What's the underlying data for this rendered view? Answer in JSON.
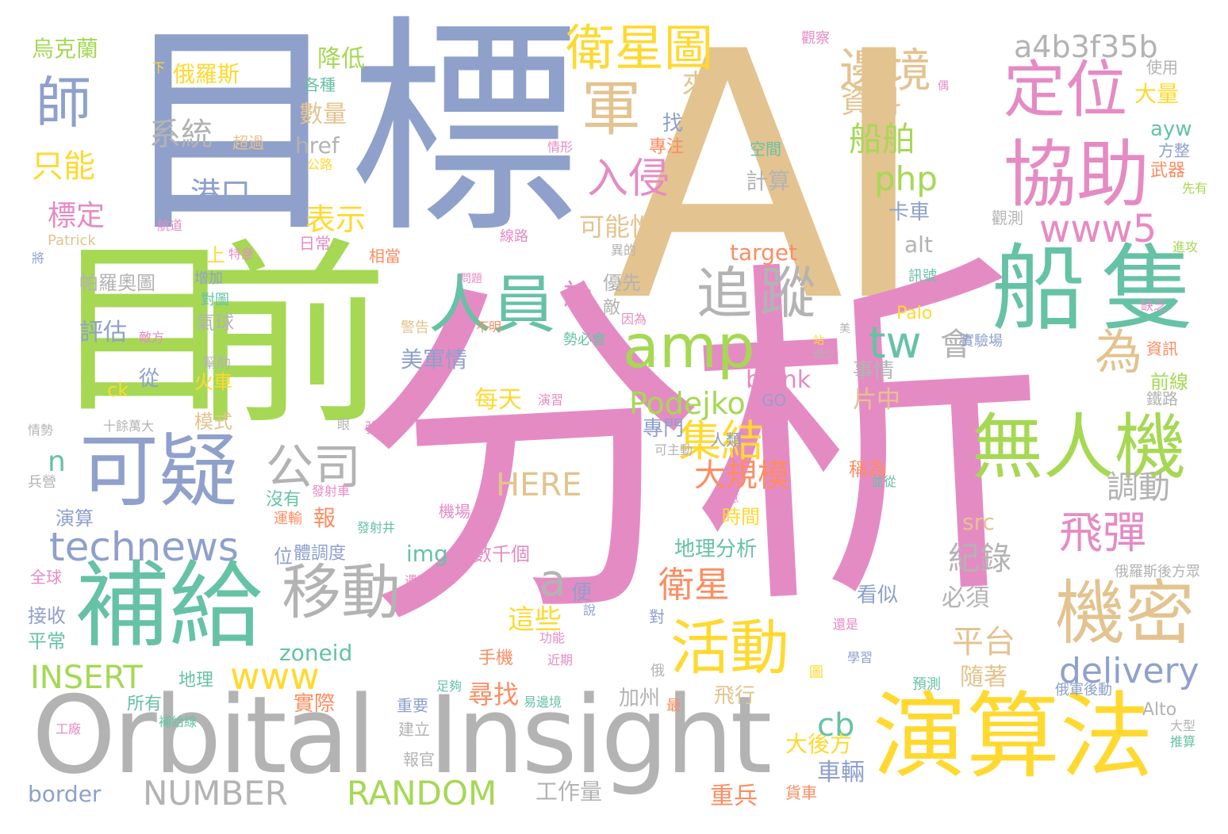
{
  "palette": {
    "pink": "#e58bc4",
    "tan": "#e3c38f",
    "blue": "#8fa0cb",
    "green": "#a6d854",
    "teal": "#66c2a5",
    "yellow": "#ffd92f",
    "orange": "#fc8d62",
    "gray": "#b3b3b3"
  },
  "words": [
    {
      "text": "AI",
      "color": "tan"
    },
    {
      "text": "分析",
      "color": "pink"
    },
    {
      "text": "標",
      "color": "blue"
    },
    {
      "text": "目",
      "color": "blue"
    },
    {
      "text": "目",
      "color": "green"
    },
    {
      "text": "前",
      "color": "green"
    },
    {
      "text": "Orbital",
      "color": "gray"
    },
    {
      "text": "Insight",
      "color": "gray"
    },
    {
      "text": "演算法",
      "color": "yellow"
    },
    {
      "text": "船隻",
      "color": "teal"
    },
    {
      "text": "補給",
      "color": "teal"
    },
    {
      "text": "可疑",
      "color": "blue"
    },
    {
      "text": "無人機",
      "color": "green"
    },
    {
      "text": "協助",
      "color": "pink"
    },
    {
      "text": "定位",
      "color": "pink"
    },
    {
      "text": "人員",
      "color": "teal"
    },
    {
      "text": "amp",
      "color": "green"
    },
    {
      "text": "追蹤",
      "color": "gray"
    },
    {
      "text": "移動",
      "color": "gray"
    },
    {
      "text": "機密",
      "color": "tan"
    },
    {
      "text": "活動",
      "color": "yellow"
    },
    {
      "text": "technews",
      "color": "blue"
    },
    {
      "text": "衛星圖",
      "color": "yellow"
    },
    {
      "text": "邊境",
      "color": "tan"
    },
    {
      "text": "a4b3f35b",
      "color": "gray"
    },
    {
      "text": "www5",
      "color": "pink"
    },
    {
      "text": "師",
      "color": "blue"
    },
    {
      "text": "軍",
      "color": "tan"
    },
    {
      "text": "公司",
      "color": "gray"
    },
    {
      "text": "集結",
      "color": "yellow"
    },
    {
      "text": "飛彈",
      "color": "pink"
    },
    {
      "text": "系統",
      "color": "gray"
    },
    {
      "text": "港口",
      "color": "blue"
    },
    {
      "text": "入侵",
      "color": "pink"
    },
    {
      "text": "船舶",
      "color": "green"
    },
    {
      "text": "資料",
      "color": "tan"
    },
    {
      "text": "php",
      "color": "green"
    },
    {
      "text": "tw",
      "color": "teal"
    },
    {
      "text": "會",
      "color": "gray"
    },
    {
      "text": "為",
      "color": "tan"
    },
    {
      "text": "衛星",
      "color": "orange"
    },
    {
      "text": "大規模",
      "color": "orange"
    },
    {
      "text": "Podejko",
      "color": "green"
    },
    {
      "text": "www",
      "color": "yellow"
    },
    {
      "text": "INSERT",
      "color": "green"
    },
    {
      "text": "NUMBER",
      "color": "gray"
    },
    {
      "text": "RANDOM",
      "color": "green"
    },
    {
      "text": "HERE",
      "color": "tan"
    },
    {
      "text": "delivery",
      "color": "blue"
    },
    {
      "text": "平台",
      "color": "tan"
    },
    {
      "text": "紀錄",
      "color": "gray"
    },
    {
      "text": "調動",
      "color": "gray"
    },
    {
      "text": "只能",
      "color": "yellow"
    },
    {
      "text": "標定",
      "color": "pink"
    },
    {
      "text": "烏克蘭",
      "color": "green"
    },
    {
      "text": "俄羅斯",
      "color": "yellow"
    },
    {
      "text": "降低",
      "color": "green"
    },
    {
      "text": "數量",
      "color": "tan"
    },
    {
      "text": "表示",
      "color": "yellow"
    },
    {
      "text": "可能性",
      "color": "tan"
    },
    {
      "text": "來",
      "color": "tan"
    },
    {
      "text": "cb",
      "color": "teal"
    },
    {
      "text": "n",
      "color": "teal"
    },
    {
      "text": "a",
      "color": "gray"
    },
    {
      "text": "於",
      "color": "pink"
    },
    {
      "text": "每天",
      "color": "yellow"
    },
    {
      "text": "這些",
      "color": "yellow"
    },
    {
      "text": "美軍情",
      "color": "blue"
    },
    {
      "text": "專門",
      "color": "blue"
    },
    {
      "text": "zoneid",
      "color": "teal"
    },
    {
      "text": "target",
      "color": "orange"
    },
    {
      "text": "alt",
      "color": "gray"
    },
    {
      "text": "href",
      "color": "gray"
    },
    {
      "text": "計算",
      "color": "gray"
    },
    {
      "text": "卡車",
      "color": "blue"
    },
    {
      "text": "大量",
      "color": "yellow"
    },
    {
      "text": "ayw",
      "color": "teal"
    },
    {
      "text": "blank",
      "color": "pink"
    },
    {
      "text": "GO",
      "color": "blue"
    },
    {
      "text": "Palo",
      "color": "yellow"
    },
    {
      "text": "Alto",
      "color": "gray"
    },
    {
      "text": "帕羅奧圖",
      "color": "gray"
    },
    {
      "text": "評估",
      "color": "blue"
    },
    {
      "text": "氣球",
      "color": "gray"
    },
    {
      "text": "火車",
      "color": "yellow"
    },
    {
      "text": "模式",
      "color": "tan"
    },
    {
      "text": "從",
      "color": "blue"
    },
    {
      "text": "ck",
      "color": "yellow"
    },
    {
      "text": "img",
      "color": "teal"
    },
    {
      "text": "src",
      "color": "tan"
    },
    {
      "text": "地理分析",
      "color": "teal"
    },
    {
      "text": "時間",
      "color": "yellow"
    },
    {
      "text": "數千個",
      "color": "pink"
    },
    {
      "text": "必須",
      "color": "gray"
    },
    {
      "text": "看似",
      "color": "blue"
    },
    {
      "text": "片中",
      "color": "tan"
    },
    {
      "text": "事情",
      "color": "gray"
    },
    {
      "text": "隨著",
      "color": "tan"
    },
    {
      "text": "加州",
      "color": "gray"
    },
    {
      "text": "飛行",
      "color": "tan"
    },
    {
      "text": "尋找",
      "color": "orange"
    },
    {
      "text": "實際",
      "color": "orange"
    },
    {
      "text": "重兵",
      "color": "orange"
    },
    {
      "text": "工作量",
      "color": "gray"
    },
    {
      "text": "車輛",
      "color": "blue"
    },
    {
      "text": "大後方",
      "color": "yellow"
    },
    {
      "text": "border",
      "color": "blue"
    },
    {
      "text": "上",
      "color": "yellow"
    },
    {
      "text": "日常",
      "color": "pink"
    },
    {
      "text": "相當",
      "color": "orange"
    },
    {
      "text": "報",
      "color": "orange"
    },
    {
      "text": "演算",
      "color": "blue"
    },
    {
      "text": "接收",
      "color": "blue"
    },
    {
      "text": "平常",
      "color": "teal"
    },
    {
      "text": "全球",
      "color": "pink"
    },
    {
      "text": "手機",
      "color": "orange"
    },
    {
      "text": "地理",
      "color": "teal"
    },
    {
      "text": "所有",
      "color": "teal"
    },
    {
      "text": "位",
      "color": "blue"
    },
    {
      "text": "體調度",
      "color": "blue"
    },
    {
      "text": "沒有",
      "color": "teal"
    },
    {
      "text": "運輸",
      "color": "orange"
    },
    {
      "text": "機場",
      "color": "pink"
    },
    {
      "text": "便",
      "color": "blue"
    },
    {
      "text": "前線",
      "color": "green"
    },
    {
      "text": "方整",
      "color": "blue"
    },
    {
      "text": "使用",
      "color": "gray"
    },
    {
      "text": "武器",
      "color": "orange"
    },
    {
      "text": "資訊",
      "color": "orange"
    },
    {
      "text": "稱為",
      "color": "orange"
    },
    {
      "text": "人類",
      "color": "blue"
    },
    {
      "text": "優先",
      "color": "gray"
    },
    {
      "text": "敵",
      "color": "gray"
    },
    {
      "text": "超過",
      "color": "tan"
    },
    {
      "text": "各種",
      "color": "teal"
    },
    {
      "text": "找",
      "color": "blue"
    },
    {
      "text": "專注",
      "color": "orange"
    },
    {
      "text": "空間",
      "color": "teal"
    },
    {
      "text": "實驗場",
      "color": "blue"
    },
    {
      "text": "建立",
      "color": "gray"
    },
    {
      "text": "報官",
      "color": "gray"
    },
    {
      "text": "重要",
      "color": "blue"
    },
    {
      "text": "貨車",
      "color": "orange"
    },
    {
      "text": "觀察",
      "color": "pink"
    },
    {
      "text": "觀測",
      "color": "gray"
    },
    {
      "text": "航道",
      "color": "pink"
    },
    {
      "text": "線路",
      "color": "pink"
    },
    {
      "text": "Patrick",
      "color": "tan"
    },
    {
      "text": "特意",
      "color": "pink"
    },
    {
      "text": "增加",
      "color": "blue"
    },
    {
      "text": "對圖",
      "color": "teal"
    },
    {
      "text": "警告",
      "color": "tan"
    },
    {
      "text": "不明",
      "color": "orange"
    },
    {
      "text": "因為",
      "color": "pink"
    },
    {
      "text": "勢必會",
      "color": "teal"
    },
    {
      "text": "敵方",
      "color": "pink"
    },
    {
      "text": "幫助",
      "color": "gray"
    },
    {
      "text": "十餘萬大",
      "color": "gray"
    },
    {
      "text": "情勢",
      "color": "gray"
    },
    {
      "text": "兵營",
      "color": "gray"
    },
    {
      "text": "強度",
      "color": "pink"
    },
    {
      "text": "發射車",
      "color": "pink"
    },
    {
      "text": "發射井",
      "color": "teal"
    },
    {
      "text": "注意",
      "color": "pink"
    },
    {
      "text": "並從",
      "color": "teal"
    },
    {
      "text": "可主動",
      "color": "gray"
    },
    {
      "text": "俄羅斯後方眾",
      "color": "gray"
    },
    {
      "text": "遇到",
      "color": "pink"
    },
    {
      "text": "功能",
      "color": "pink"
    },
    {
      "text": "近期",
      "color": "pink"
    },
    {
      "text": "說",
      "color": "blue"
    },
    {
      "text": "還是",
      "color": "pink"
    },
    {
      "text": "學習",
      "color": "blue"
    },
    {
      "text": "預測",
      "color": "teal"
    },
    {
      "text": "俄軍後動",
      "color": "blue"
    },
    {
      "text": "足夠",
      "color": "teal"
    },
    {
      "text": "補給線",
      "color": "teal"
    },
    {
      "text": "工廠",
      "color": "pink"
    },
    {
      "text": "最",
      "color": "orange"
    },
    {
      "text": "俄",
      "color": "gray"
    },
    {
      "text": "演習",
      "color": "pink"
    },
    {
      "text": "眼",
      "color": "gray"
    },
    {
      "text": "鐵路",
      "color": "gray"
    },
    {
      "text": "推算",
      "color": "teal"
    },
    {
      "text": "大型",
      "color": "gray"
    },
    {
      "text": "缺乏",
      "color": "pink"
    },
    {
      "text": "先有",
      "color": "green"
    },
    {
      "text": "進攻",
      "color": "green"
    },
    {
      "text": "訊號",
      "color": "teal"
    },
    {
      "text": "公路",
      "color": "yellow"
    },
    {
      "text": "情形",
      "color": "pink"
    },
    {
      "text": "美",
      "color": "gray"
    },
    {
      "text": "下",
      "color": "yellow"
    },
    {
      "text": "異的",
      "color": "gray"
    },
    {
      "text": "過少",
      "color": "gray"
    },
    {
      "text": "站",
      "color": "yellow"
    },
    {
      "text": "偶",
      "color": "pink"
    },
    {
      "text": "將",
      "color": "blue"
    },
    {
      "text": "對",
      "color": "blue"
    },
    {
      "text": "圖",
      "color": "yellow"
    },
    {
      "text": "易邊境",
      "color": "teal"
    },
    {
      "text": "問題",
      "color": "pink"
    }
  ]
}
